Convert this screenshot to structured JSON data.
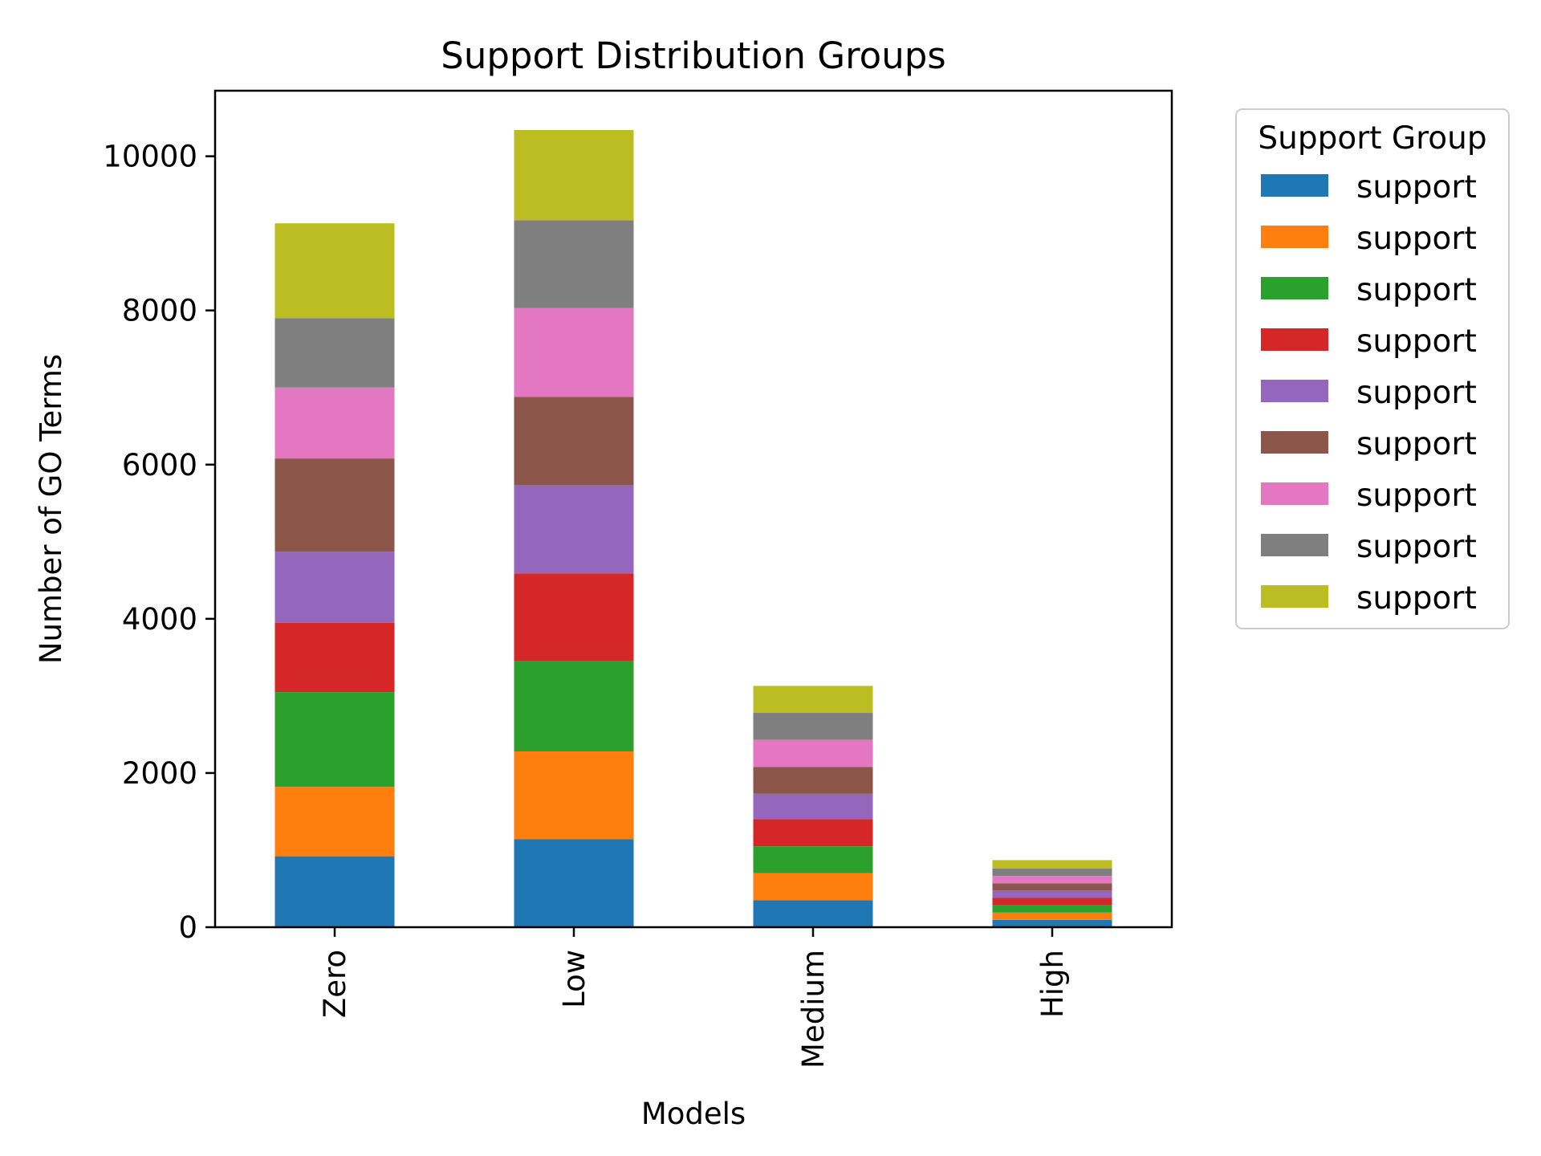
{
  "chart_data": {
    "type": "bar",
    "stacked": true,
    "title": "Support Distribution Groups",
    "xlabel": "Models",
    "ylabel": "Number of GO Terms",
    "categories": [
      "Zero",
      "Low",
      "Medium",
      "High"
    ],
    "yticks": [
      0,
      2000,
      4000,
      6000,
      8000,
      10000
    ],
    "ylim": [
      0,
      10850
    ],
    "legend": {
      "title": "Support Group",
      "placement": "outside-right-top"
    },
    "series": [
      {
        "name": "support",
        "color": "#1f77b4",
        "values": [
          920,
          1140,
          350,
          95
        ]
      },
      {
        "name": "support",
        "color": "#ff7f0e",
        "values": [
          900,
          1140,
          350,
          95
        ]
      },
      {
        "name": "support",
        "color": "#2ca02c",
        "values": [
          1230,
          1170,
          350,
          95
        ]
      },
      {
        "name": "support",
        "color": "#d62728",
        "values": [
          900,
          1140,
          350,
          95
        ]
      },
      {
        "name": "support",
        "color": "#9467bd",
        "values": [
          920,
          1140,
          330,
          95
        ]
      },
      {
        "name": "support",
        "color": "#8c564b",
        "values": [
          1210,
          1150,
          350,
          95
        ]
      },
      {
        "name": "support",
        "color": "#e377c2",
        "values": [
          920,
          1150,
          350,
          95
        ]
      },
      {
        "name": "support",
        "color": "#7f7f7f",
        "values": [
          900,
          1140,
          350,
          95
        ]
      },
      {
        "name": "support",
        "color": "#bcbd22",
        "values": [
          1230,
          1170,
          350,
          110
        ]
      }
    ]
  }
}
